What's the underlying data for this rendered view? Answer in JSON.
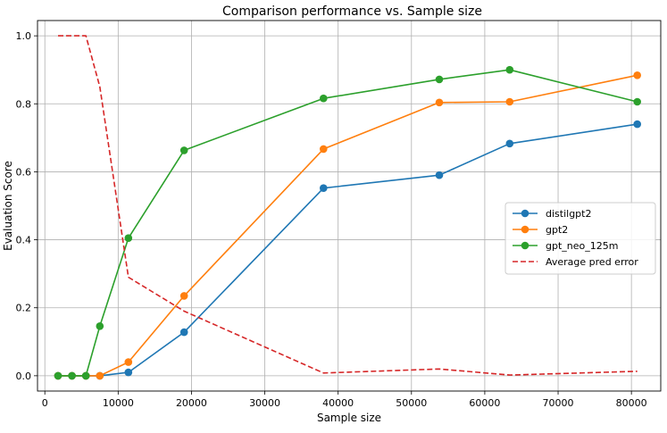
{
  "chart_data": {
    "type": "line",
    "title": "Comparison performance vs. Sample size",
    "xlabel": "Sample size",
    "ylabel": "Evaluation Score",
    "xlim": [
      -1000,
      84000
    ],
    "ylim": [
      -0.045,
      1.045
    ],
    "xticks": [
      0,
      10000,
      20000,
      30000,
      40000,
      50000,
      60000,
      70000,
      80000
    ],
    "xtick_labels": [
      "0",
      "10000",
      "20000",
      "30000",
      "40000",
      "50000",
      "60000",
      "70000",
      "80000"
    ],
    "yticks": [
      0.0,
      0.2,
      0.4,
      0.6,
      0.8,
      1.0
    ],
    "ytick_labels": [
      "0.0",
      "0.2",
      "0.4",
      "0.6",
      "0.8",
      "1.0"
    ],
    "grid": true,
    "legend_position": "center-right",
    "series": [
      {
        "name": "distilgpt2",
        "color": "#1f77b4",
        "style": "solid-marker",
        "x": [
          1800,
          3700,
          5600,
          7500,
          11400,
          19000,
          38000,
          53800,
          63400,
          80800
        ],
        "y": [
          0.0,
          0.0,
          0.0,
          0.0,
          0.01,
          0.128,
          0.552,
          0.59,
          0.683,
          0.74
        ]
      },
      {
        "name": "gpt2",
        "color": "#ff7f0e",
        "style": "solid-marker",
        "x": [
          1800,
          3700,
          5600,
          7500,
          11400,
          19000,
          38000,
          53800,
          63400,
          80800
        ],
        "y": [
          0.0,
          0.0,
          0.0,
          0.0,
          0.04,
          0.235,
          0.667,
          0.804,
          0.806,
          0.884
        ]
      },
      {
        "name": "gpt_neo_125m",
        "color": "#2ca02c",
        "style": "solid-marker",
        "x": [
          1800,
          3700,
          5600,
          7500,
          11400,
          19000,
          38000,
          53800,
          63400,
          80800
        ],
        "y": [
          0.0,
          0.0,
          0.0,
          0.146,
          0.405,
          0.663,
          0.816,
          0.872,
          0.9,
          0.806
        ]
      },
      {
        "name": "Average pred error",
        "color": "#d62728",
        "style": "dashed",
        "x": [
          1800,
          3700,
          5600,
          7500,
          11400,
          19000,
          38000,
          53800,
          63400,
          80800
        ],
        "y": [
          1.0,
          1.0,
          1.0,
          0.85,
          0.29,
          0.19,
          0.008,
          0.02,
          0.002,
          0.013
        ]
      }
    ]
  }
}
